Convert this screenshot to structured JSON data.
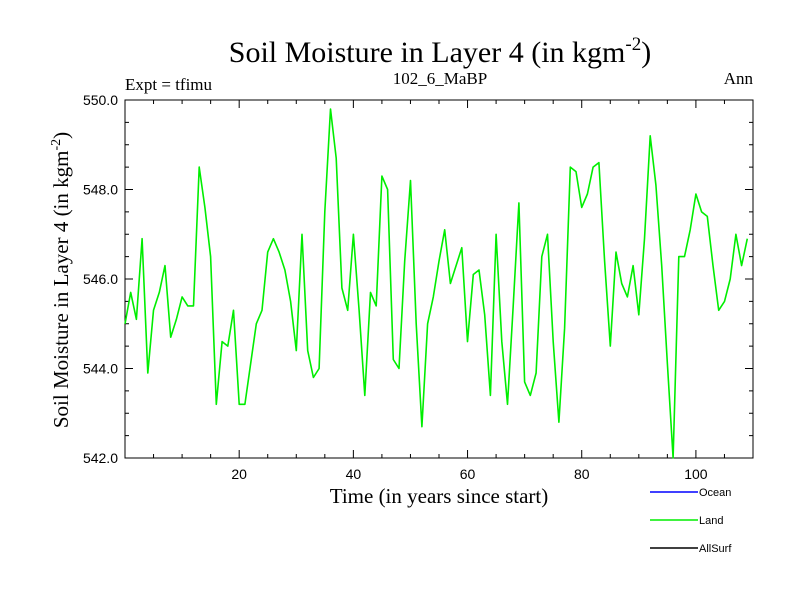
{
  "chart_data": {
    "type": "line",
    "title_main": "Soil Moisture in Layer 4 (in kgm",
    "title_sup": "-2",
    "title_close": ")",
    "subtitle_left": "Expt = tfimu",
    "subtitle_center": "102_6_MaBP",
    "subtitle_right": "Ann",
    "xlabel": "Time (in years since start)",
    "ylabel_main": "Soil Moisture in Layer 4 (in kgm",
    "ylabel_sup": "-2",
    "ylabel_close": ")",
    "xlim": [
      0,
      110
    ],
    "ylim": [
      542.0,
      550.0
    ],
    "x_ticks": [
      20,
      40,
      60,
      80,
      100
    ],
    "x_tick_labels": [
      "20",
      "40",
      "60",
      "80",
      "100"
    ],
    "y_ticks": [
      542,
      544,
      546,
      548,
      550
    ],
    "y_tick_labels": [
      "542.0",
      "544.0",
      "546.0",
      "548.0",
      "550.0"
    ],
    "legend": [
      {
        "name": "Ocean",
        "color": "#0000ff"
      },
      {
        "name": "Land",
        "color": "#00ee00"
      },
      {
        "name": "AllSurf",
        "color": "#000000"
      }
    ],
    "series": [
      {
        "name": "Land",
        "color": "#00ee00",
        "x_start": 0,
        "x_step": 1,
        "values": [
          545.0,
          545.7,
          545.1,
          546.9,
          543.9,
          545.3,
          545.7,
          546.3,
          544.7,
          545.1,
          545.6,
          545.4,
          545.4,
          548.5,
          547.6,
          546.5,
          543.2,
          544.6,
          544.5,
          545.3,
          543.2,
          543.2,
          544.1,
          545.0,
          545.3,
          546.6,
          546.9,
          546.6,
          546.2,
          545.5,
          544.4,
          547.0,
          544.4,
          543.8,
          544.0,
          547.5,
          549.8,
          548.7,
          545.8,
          545.3,
          547.0,
          545.3,
          543.4,
          545.7,
          545.4,
          548.3,
          548.0,
          544.2,
          544.0,
          546.4,
          548.2,
          545.0,
          542.7,
          545.0,
          545.6,
          546.4,
          547.1,
          545.9,
          546.3,
          546.7,
          544.6,
          546.1,
          546.2,
          545.2,
          543.4,
          547.0,
          544.6,
          543.2,
          545.4,
          547.7,
          543.7,
          543.4,
          543.9,
          546.5,
          547.0,
          544.6,
          542.8,
          544.9,
          548.5,
          548.4,
          547.6,
          547.9,
          548.5,
          548.6,
          546.4,
          544.5,
          546.6,
          545.9,
          545.6,
          546.3,
          545.2,
          546.9,
          549.2,
          548.1,
          546.3,
          544.1,
          542.0,
          546.5,
          546.5,
          547.1,
          547.9,
          547.5,
          547.4,
          546.3,
          545.3,
          545.5,
          546.0,
          547.0,
          546.3,
          546.9
        ]
      }
    ]
  }
}
